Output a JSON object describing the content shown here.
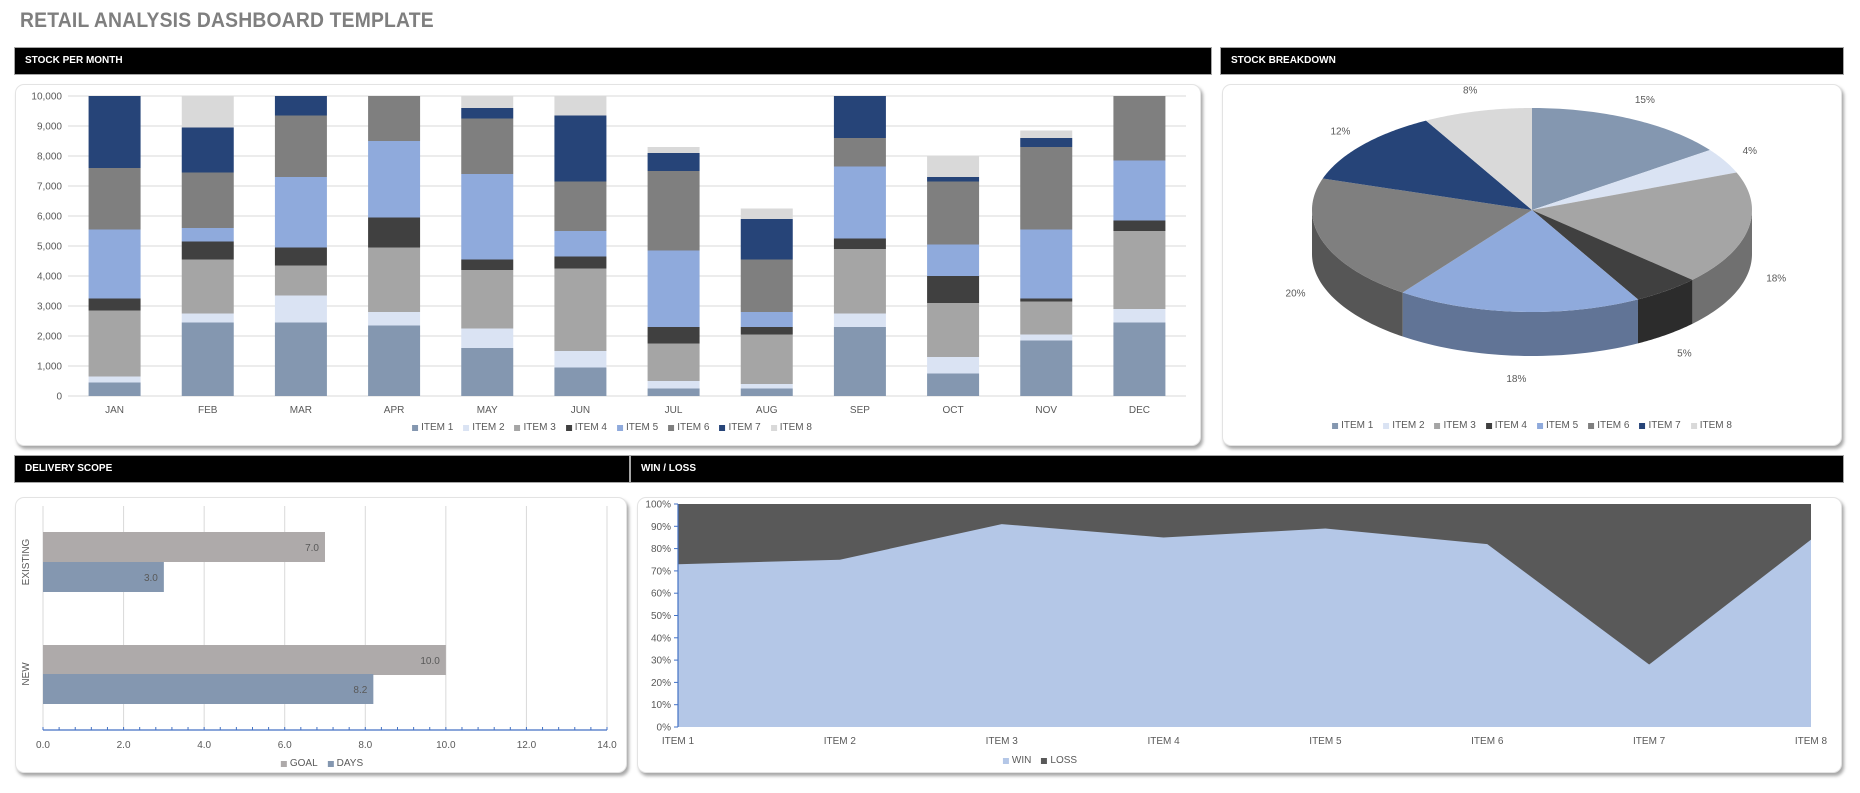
{
  "title": "RETAIL ANALYSIS DASHBOARD TEMPLATE",
  "headers": {
    "stock_per_month": "STOCK PER MONTH",
    "stock_breakdown": "STOCK BREAKDOWN",
    "delivery_scope": "DELIVERY SCOPE",
    "win_loss": "WIN / LOSS"
  },
  "colors": {
    "item1": "#8497b0",
    "item2": "#dae3f3",
    "item3": "#a5a5a5",
    "item4": "#404040",
    "item5": "#8faadc",
    "item6": "#7f7f7f",
    "item7": "#264478",
    "item8": "#d9d9d9",
    "goal": "#aeaaaa",
    "days": "#8497b0",
    "win": "#b4c7e7",
    "loss": "#595959"
  },
  "chart_data": [
    {
      "type": "bar",
      "stacked": true,
      "categories": [
        "JAN",
        "FEB",
        "MAR",
        "APR",
        "MAY",
        "JUN",
        "JUL",
        "AUG",
        "SEP",
        "OCT",
        "NOV",
        "DEC"
      ],
      "ylim": [
        0,
        10000
      ],
      "yticks": [
        "0",
        "1,000",
        "2,000",
        "3,000",
        "4,000",
        "5,000",
        "6,000",
        "7,000",
        "8,000",
        "9,000",
        "10,000"
      ],
      "grid": true,
      "legend": "bottom",
      "series": [
        {
          "name": "ITEM 1",
          "values": [
            450,
            2450,
            2450,
            2350,
            1600,
            950,
            250,
            250,
            2300,
            750,
            1850,
            2450
          ]
        },
        {
          "name": "ITEM 2",
          "values": [
            200,
            300,
            900,
            450,
            650,
            550,
            250,
            150,
            450,
            550,
            200,
            450
          ]
        },
        {
          "name": "ITEM 3",
          "values": [
            2200,
            1800,
            1000,
            2150,
            1950,
            2750,
            1250,
            1650,
            2150,
            1800,
            1100,
            2600
          ]
        },
        {
          "name": "ITEM 4",
          "values": [
            400,
            600,
            600,
            1000,
            350,
            400,
            550,
            250,
            350,
            900,
            100,
            350
          ]
        },
        {
          "name": "ITEM 5",
          "values": [
            2300,
            450,
            2350,
            2550,
            2850,
            850,
            2550,
            500,
            2400,
            1050,
            2300,
            2000
          ]
        },
        {
          "name": "ITEM 6",
          "values": [
            2050,
            1850,
            2050,
            1700,
            1850,
            1650,
            2650,
            1750,
            950,
            2100,
            2750,
            2300
          ]
        },
        {
          "name": "ITEM 7",
          "values": [
            2600,
            1500,
            800,
            0,
            350,
            2200,
            600,
            1350,
            1600,
            150,
            300,
            0
          ]
        },
        {
          "name": "ITEM 8",
          "values": [
            0,
            1200,
            0,
            0,
            400,
            650,
            200,
            350,
            0,
            700,
            250,
            0
          ]
        }
      ]
    },
    {
      "type": "pie",
      "style": "3d",
      "legend": "bottom",
      "categories": [
        "ITEM 1",
        "ITEM 2",
        "ITEM 3",
        "ITEM 4",
        "ITEM 5",
        "ITEM 6",
        "ITEM 7",
        "ITEM 8"
      ],
      "values": [
        15,
        4,
        18,
        5,
        18,
        20,
        12,
        8
      ],
      "labels": [
        "15%",
        "4%",
        "18%",
        "5%",
        "18%",
        "20%",
        "12%",
        "8%"
      ]
    },
    {
      "type": "bar",
      "orientation": "horizontal",
      "categories": [
        "EXISTING",
        "NEW"
      ],
      "xlim": [
        0,
        14
      ],
      "xticks": [
        "0.0",
        "2.0",
        "4.0",
        "6.0",
        "8.0",
        "10.0",
        "12.0",
        "14.0"
      ],
      "grid": true,
      "legend": "bottom",
      "series": [
        {
          "name": "GOAL",
          "values": [
            7.0,
            10.0
          ],
          "labels": [
            "7.0",
            "10.0"
          ]
        },
        {
          "name": "DAYS",
          "values": [
            3.0,
            8.2
          ],
          "labels": [
            "3.0",
            "8.2"
          ]
        }
      ]
    },
    {
      "type": "area",
      "stacked_percent": true,
      "categories": [
        "ITEM 1",
        "ITEM 2",
        "ITEM 3",
        "ITEM 4",
        "ITEM 5",
        "ITEM 6",
        "ITEM 7",
        "ITEM 8"
      ],
      "ylim": [
        0,
        100
      ],
      "yticks": [
        "0%",
        "10%",
        "20%",
        "30%",
        "40%",
        "50%",
        "60%",
        "70%",
        "80%",
        "90%",
        "100%"
      ],
      "legend": "bottom",
      "series": [
        {
          "name": "WIN",
          "values": [
            73,
            75,
            91,
            85,
            89,
            82,
            28,
            84
          ]
        },
        {
          "name": "LOSS",
          "values": [
            27,
            25,
            9,
            15,
            11,
            18,
            72,
            16
          ]
        }
      ]
    }
  ]
}
